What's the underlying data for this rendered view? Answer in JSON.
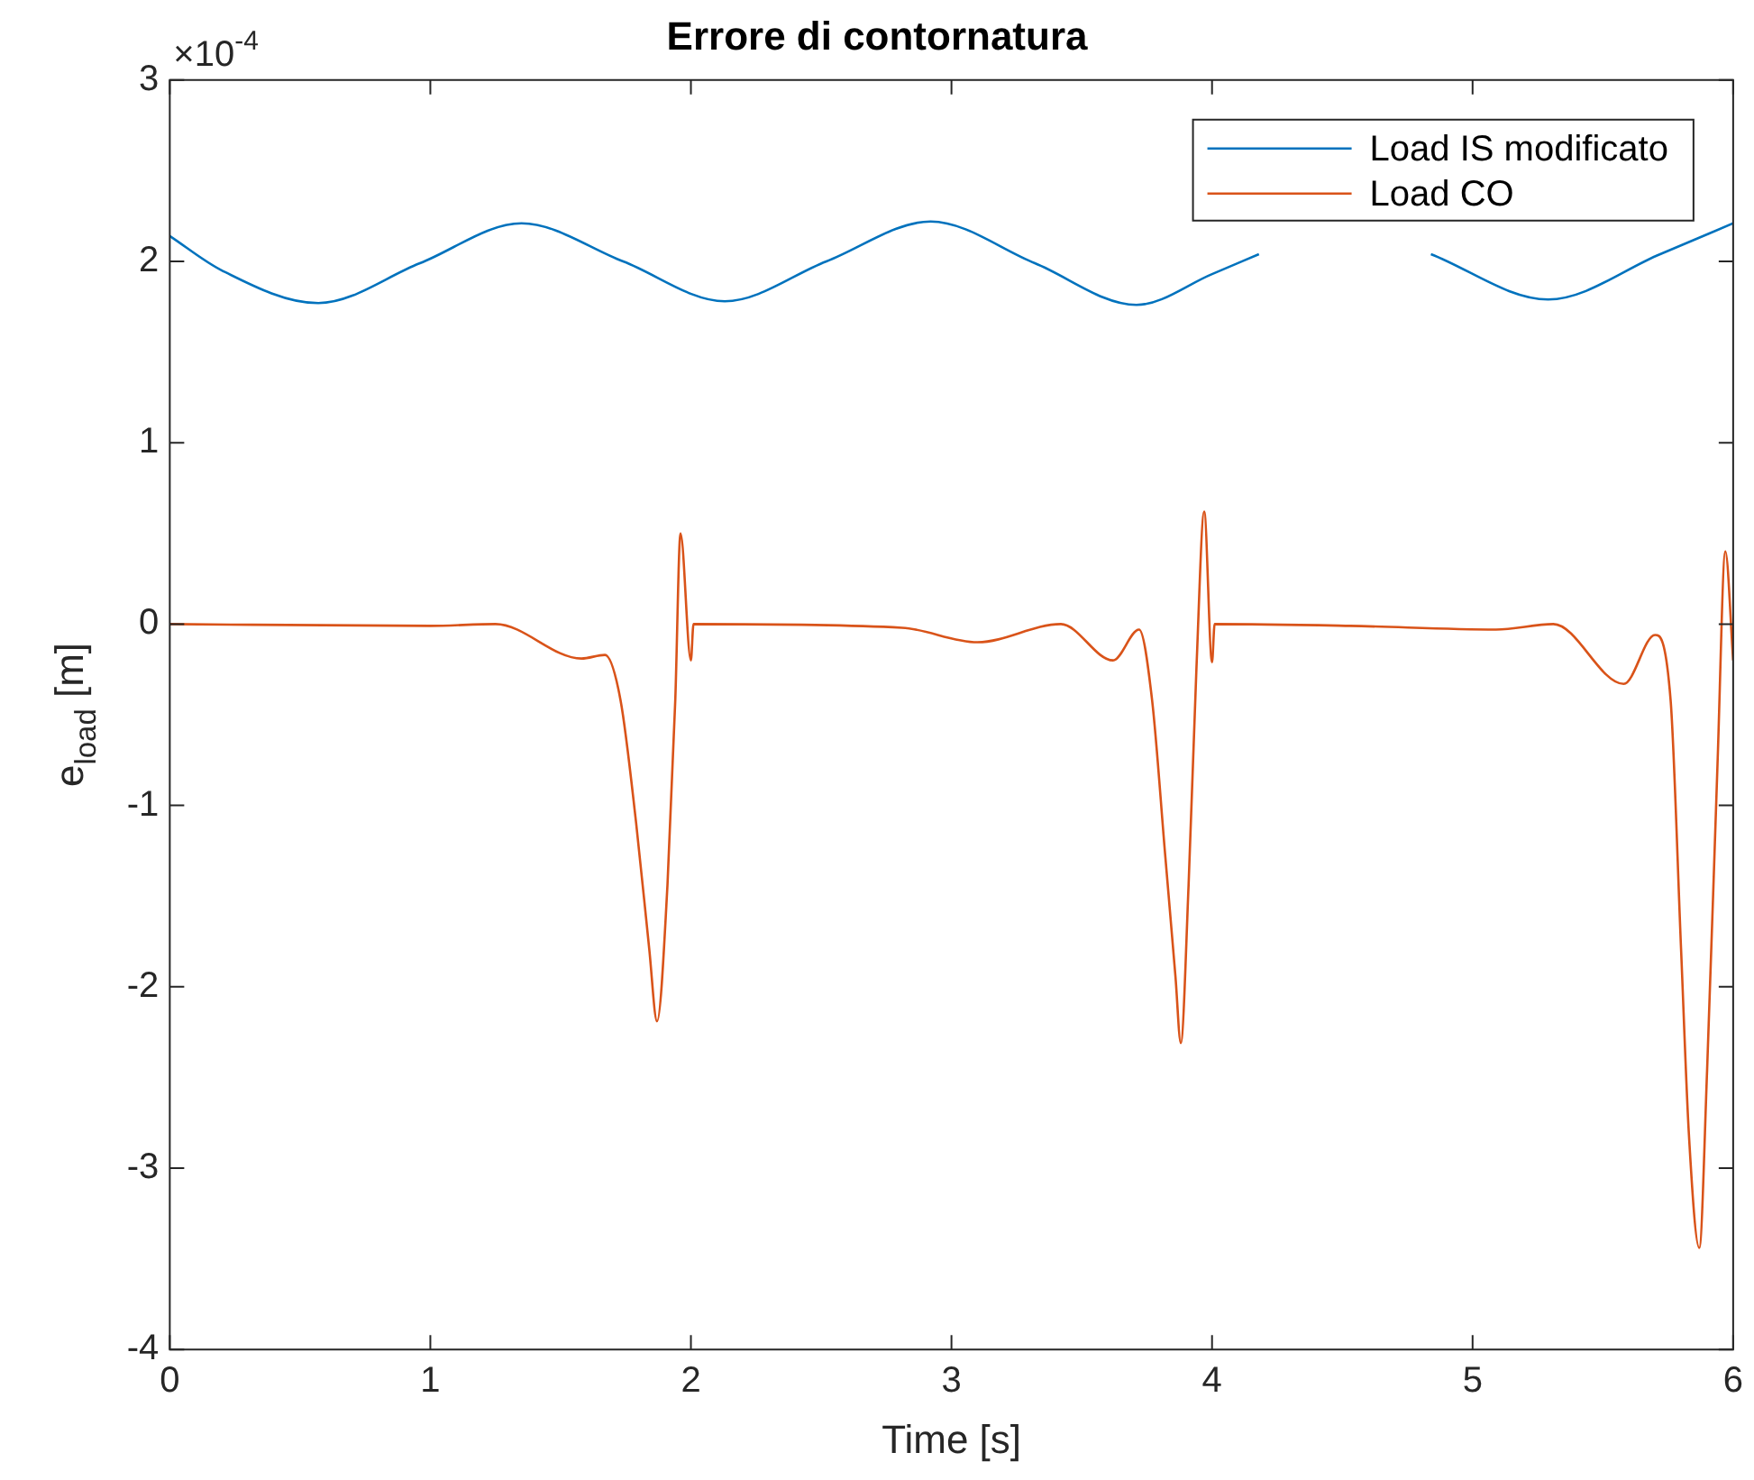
{
  "chart_data": {
    "type": "line",
    "title": "Errore di contornatura",
    "xlabel": "Time [s]",
    "ylabel": "e$_{load}$ [m]",
    "annotations": [
      "×10$^{-4}$"
    ],
    "xlim": [
      0,
      6
    ],
    "xticks": [
      0,
      1,
      2,
      3,
      4,
      5,
      6
    ],
    "ylim": [
      -4,
      3
    ],
    "yticks": [
      -4,
      -3,
      -2,
      -1,
      0,
      1,
      2,
      3
    ],
    "grid": false,
    "legend": "top right",
    "line_style": "solid",
    "marker": "none",
    "series": [
      {
        "name": "Load IS modificato",
        "color": "#0072bd",
        "x": [
          0,
          0.2,
          0.57,
          0.96,
          1.35,
          1.74,
          2.13,
          2.52,
          2.92,
          3.32,
          3.71,
          4.0,
          4.18,
          4.3,
          4.84,
          5.29,
          5.72,
          6.0
        ],
        "values": [
          2.14,
          1.95,
          1.77,
          1.99,
          2.21,
          2.0,
          1.78,
          2.0,
          2.22,
          1.99,
          1.76,
          1.93,
          2.04,
          null,
          2.04,
          1.79,
          2.04,
          2.21
        ]
      },
      {
        "name": "Load CO",
        "color": "#d95319",
        "x": [
          0,
          1.0,
          1.25,
          1.58,
          1.67,
          1.73,
          1.79,
          1.84,
          1.87,
          1.91,
          1.94,
          1.96,
          2.0,
          2.01,
          2.81,
          3.1,
          3.42,
          3.62,
          3.72,
          3.77,
          3.82,
          3.86,
          3.88,
          3.91,
          3.94,
          3.97,
          4.0,
          4.01,
          4.53,
          5.09,
          5.31,
          5.58,
          5.7,
          5.76,
          5.8,
          5.83,
          5.87,
          5.9,
          5.94,
          5.97,
          6.0
        ],
        "values": [
          0,
          -0.01,
          0,
          -0.19,
          -0.17,
          -0.42,
          -1.1,
          -1.79,
          -2.19,
          -1.44,
          -0.42,
          0.5,
          -0.2,
          0,
          -0.02,
          -0.1,
          0,
          -0.2,
          -0.03,
          -0.42,
          -1.27,
          -1.95,
          -2.31,
          -1.44,
          -0.25,
          0.62,
          -0.21,
          0,
          -0.01,
          -0.03,
          0,
          -0.33,
          -0.06,
          -0.42,
          -1.79,
          -2.81,
          -3.44,
          -2.46,
          -0.77,
          0.4,
          -0.2
        ]
      }
    ]
  }
}
